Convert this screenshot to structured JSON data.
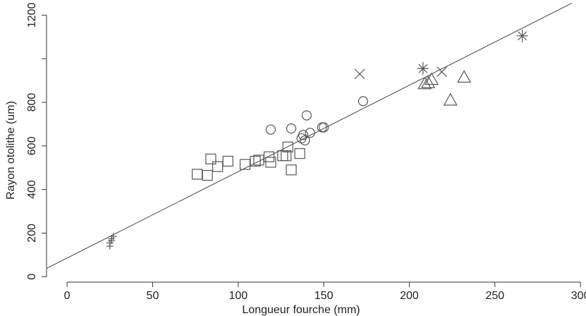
{
  "chart_data": {
    "type": "scatter",
    "xlabel": "Longueur fourche (mm)",
    "ylabel": "Rayon otolithe (um)",
    "xlim": [
      -12,
      302
    ],
    "ylim": [
      -25,
      1250
    ],
    "x_ticks": [
      0,
      50,
      100,
      150,
      200,
      250,
      300
    ],
    "y_ticks": [
      0,
      200,
      400,
      600,
      800,
      1200
    ],
    "grid": false,
    "legend": "none",
    "colors": {
      "marker": "#555555",
      "axis": "#333333",
      "line": "#444444"
    },
    "fit_line": {
      "x": [
        -12,
        295
      ],
      "y": [
        38,
        1255
      ]
    },
    "series": [
      {
        "marker": "plus",
        "points": [
          [
            25,
            140
          ],
          [
            25,
            155
          ],
          [
            26,
            165
          ],
          [
            26,
            175
          ],
          [
            27,
            185
          ]
        ]
      },
      {
        "marker": "square",
        "points": [
          [
            76,
            470
          ],
          [
            82,
            465
          ],
          [
            84,
            540
          ],
          [
            88,
            505
          ],
          [
            94,
            530
          ],
          [
            104,
            515
          ],
          [
            110,
            530
          ],
          [
            112,
            535
          ],
          [
            118,
            550
          ],
          [
            119,
            525
          ],
          [
            126,
            555
          ],
          [
            128,
            555
          ],
          [
            129,
            595
          ],
          [
            131,
            490
          ],
          [
            136,
            565
          ]
        ]
      },
      {
        "marker": "circle",
        "points": [
          [
            119,
            675
          ],
          [
            131,
            680
          ],
          [
            137,
            635
          ],
          [
            138,
            650
          ],
          [
            139,
            625
          ],
          [
            140,
            740
          ],
          [
            142,
            660
          ],
          [
            149,
            685
          ],
          [
            150,
            685
          ],
          [
            173,
            805
          ]
        ]
      },
      {
        "marker": "x",
        "points": [
          [
            171,
            930
          ],
          [
            219,
            940
          ]
        ]
      },
      {
        "marker": "asterisk",
        "points": [
          [
            208,
            955
          ],
          [
            266,
            1105
          ]
        ]
      },
      {
        "marker": "triangle",
        "points": [
          [
            209,
            885
          ],
          [
            211,
            890
          ],
          [
            213,
            905
          ],
          [
            224,
            810
          ],
          [
            232,
            915
          ]
        ]
      }
    ]
  }
}
